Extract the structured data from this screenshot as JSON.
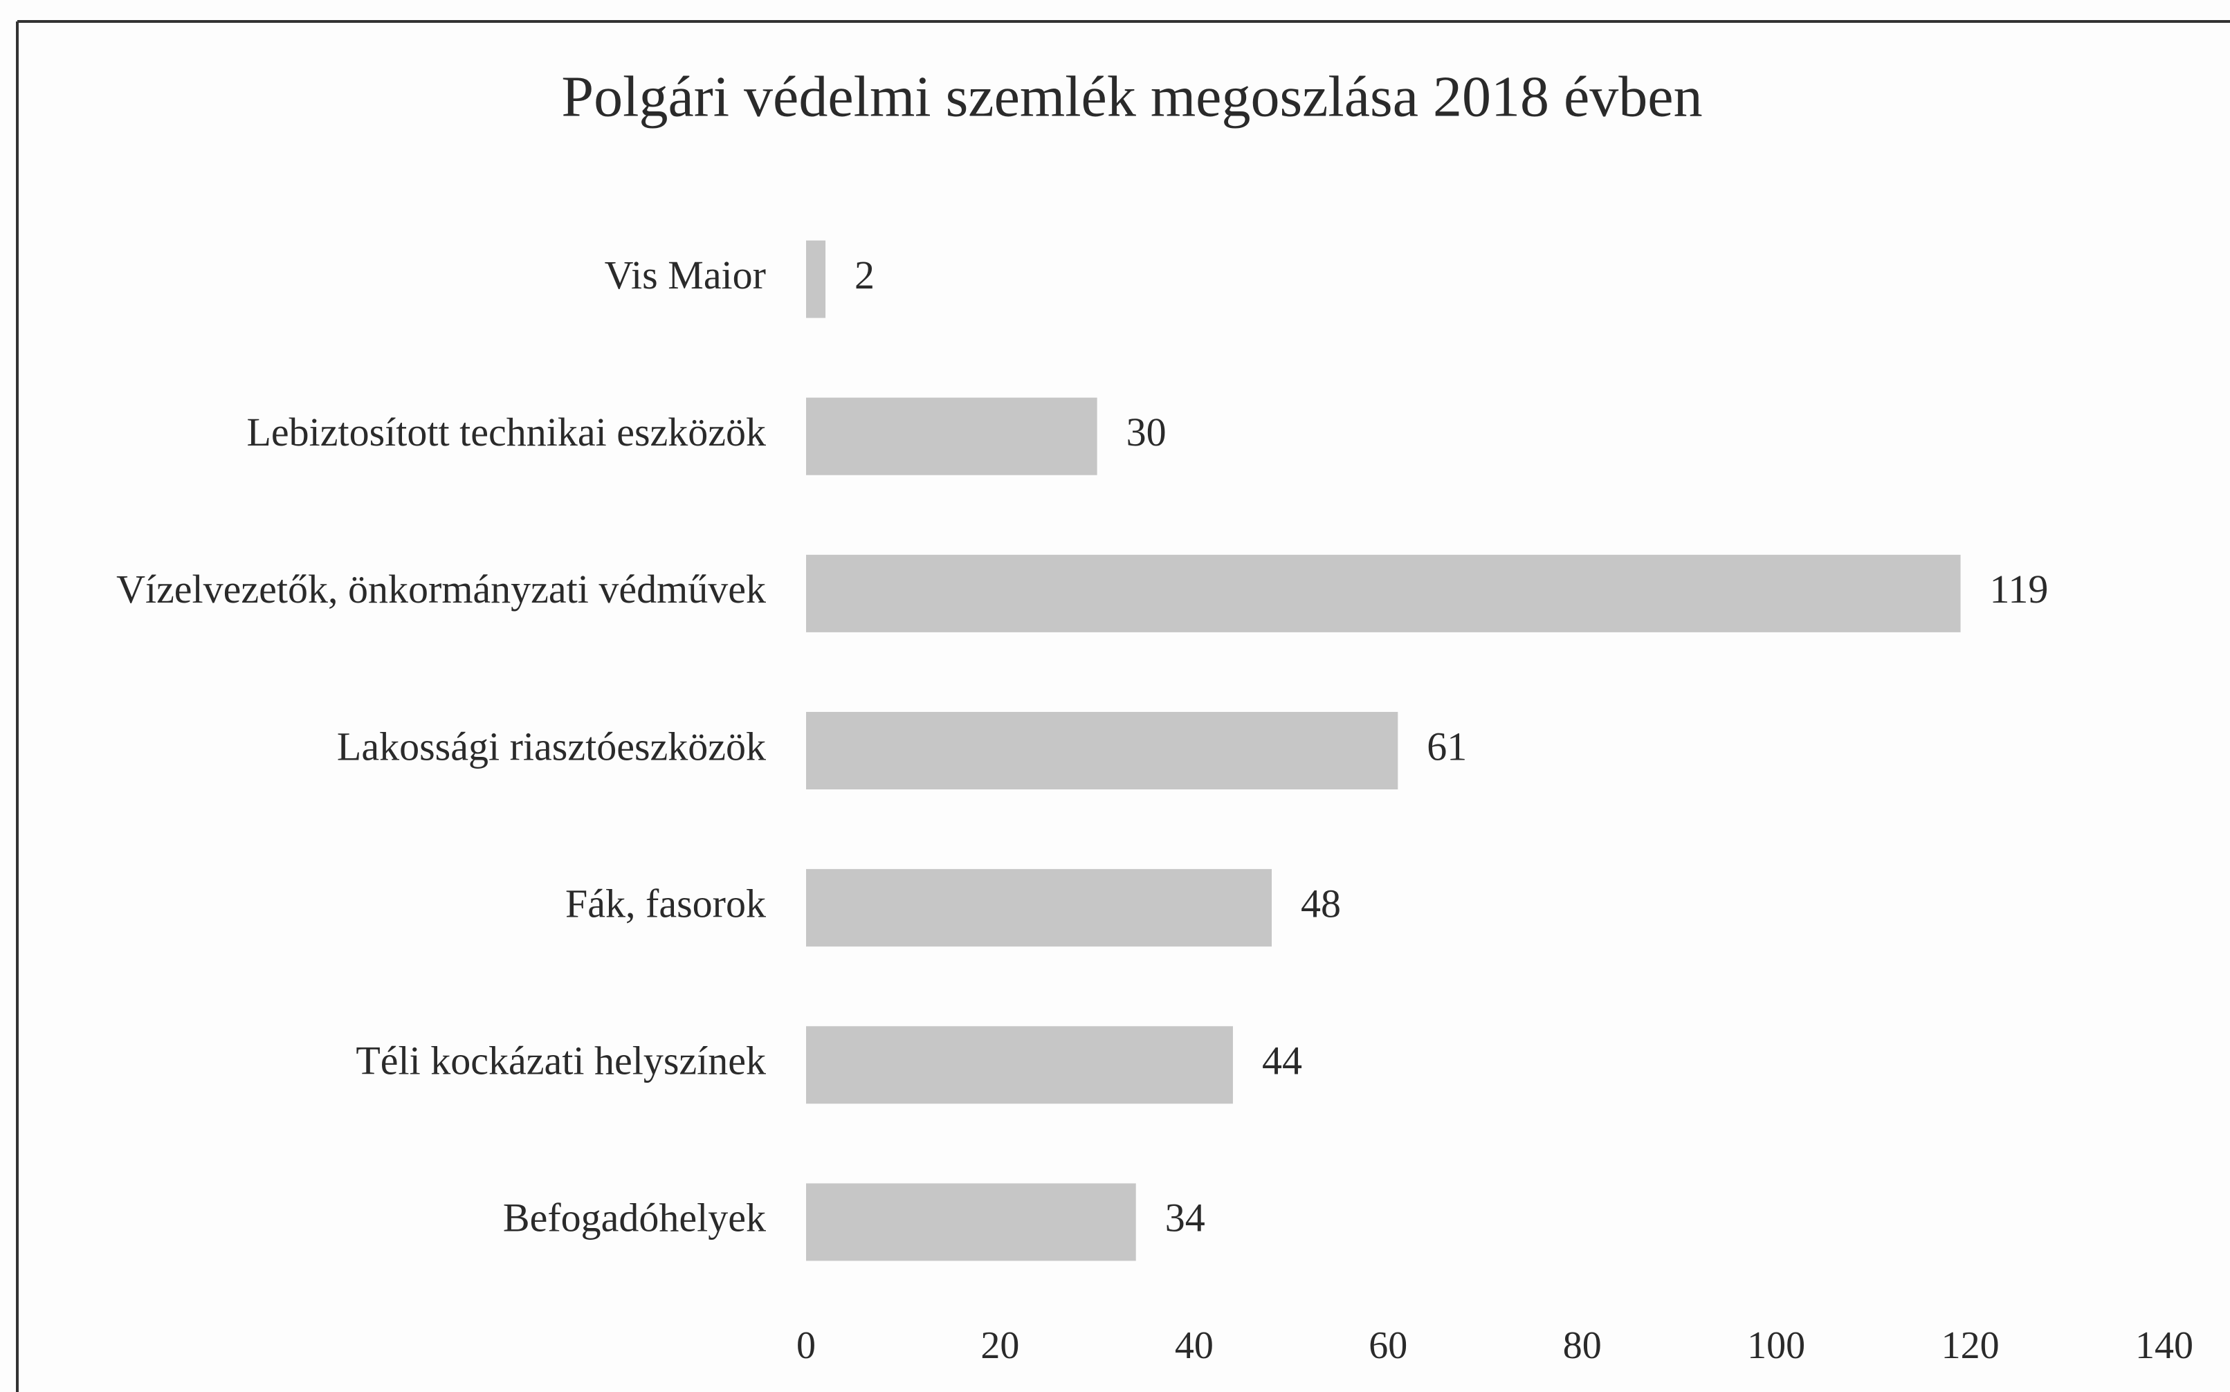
{
  "chart_data": {
    "type": "barh",
    "title": "Polgári védelmi szemlék megoszlása 2018 évben",
    "categories": [
      "Vis Maior",
      "Lebiztosított technikai eszközök",
      "Vízelvezetők, önkormányzati védművek",
      "Lakossági riasztóeszközök",
      "Fák, fasorok",
      "Téli kockázati helyszínek",
      "Befogadóhelyek"
    ],
    "values": [
      2,
      30,
      119,
      61,
      48,
      44,
      34
    ],
    "color": "#c6c6c6",
    "xlim": [
      0,
      140
    ],
    "xticks": [
      0,
      20,
      40,
      60,
      80,
      100,
      120,
      140
    ],
    "grid": false
  }
}
